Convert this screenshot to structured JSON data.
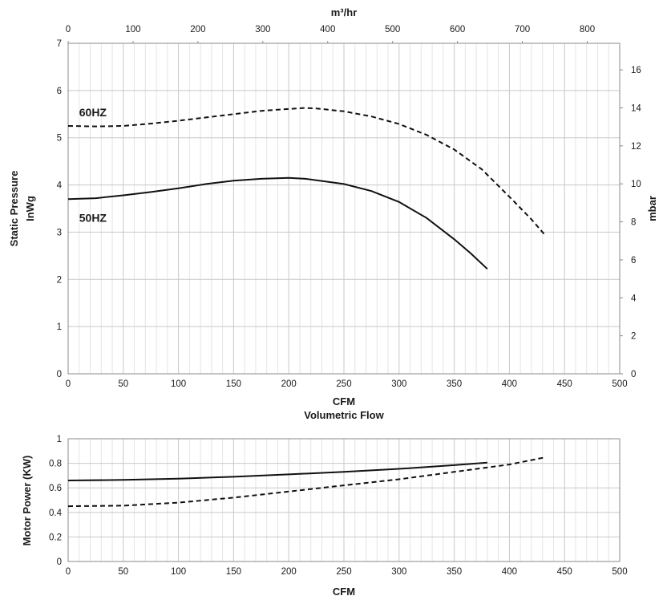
{
  "chart_data": [
    {
      "type": "line",
      "title": "",
      "top_axis": {
        "label": "m³/hr",
        "range": [
          0,
          850
        ],
        "ticks": [
          0,
          100,
          200,
          300,
          400,
          500,
          600,
          700,
          800
        ]
      },
      "x_axis": {
        "label": "CFM",
        "range": [
          0,
          500
        ],
        "ticks": [
          0,
          50,
          100,
          150,
          200,
          250,
          300,
          350,
          400,
          450,
          500
        ]
      },
      "xlabel_secondary": "Volumetric Flow",
      "y_axis": {
        "label": "Static Pressure",
        "unit": "InWg",
        "range": [
          0,
          7
        ],
        "ticks": [
          0,
          1,
          2,
          3,
          4,
          5,
          6,
          7
        ]
      },
      "y2_axis": {
        "label": "mbar",
        "range": [
          0,
          17.4
        ],
        "ticks": [
          0,
          2,
          4,
          6,
          8,
          10,
          12,
          14,
          16
        ]
      },
      "grid": true,
      "series": [
        {
          "name": "60HZ",
          "style": "dashed",
          "x": [
            0,
            25,
            50,
            75,
            100,
            125,
            150,
            175,
            200,
            215,
            225,
            250,
            275,
            300,
            325,
            350,
            375,
            400,
            420,
            433
          ],
          "y": [
            5.25,
            5.24,
            5.25,
            5.3,
            5.36,
            5.43,
            5.5,
            5.57,
            5.61,
            5.63,
            5.62,
            5.56,
            5.45,
            5.29,
            5.06,
            4.75,
            4.33,
            3.75,
            3.27,
            2.92
          ]
        },
        {
          "name": "50HZ",
          "style": "solid",
          "x": [
            0,
            25,
            50,
            75,
            100,
            125,
            150,
            175,
            200,
            215,
            250,
            275,
            300,
            325,
            350,
            365,
            380
          ],
          "y": [
            3.7,
            3.72,
            3.78,
            3.85,
            3.93,
            4.02,
            4.09,
            4.13,
            4.15,
            4.13,
            4.02,
            3.87,
            3.64,
            3.3,
            2.85,
            2.55,
            2.22
          ]
        }
      ]
    },
    {
      "type": "line",
      "title": "",
      "x_axis": {
        "label": "CFM",
        "range": [
          0,
          500
        ],
        "ticks": [
          0,
          50,
          100,
          150,
          200,
          250,
          300,
          350,
          400,
          450,
          500
        ]
      },
      "y_axis": {
        "label": "Motor Power (KW)",
        "range": [
          0,
          1
        ],
        "ticks": [
          0,
          0.2,
          0.4,
          0.6,
          0.8,
          1
        ]
      },
      "grid": true,
      "series": [
        {
          "style": "solid",
          "x": [
            0,
            50,
            100,
            150,
            200,
            250,
            300,
            350,
            380
          ],
          "y": [
            0.66,
            0.665,
            0.675,
            0.69,
            0.71,
            0.73,
            0.755,
            0.785,
            0.805
          ]
        },
        {
          "style": "dashed",
          "x": [
            0,
            50,
            100,
            150,
            200,
            250,
            300,
            350,
            400,
            433
          ],
          "y": [
            0.45,
            0.455,
            0.48,
            0.52,
            0.57,
            0.62,
            0.67,
            0.73,
            0.79,
            0.85
          ]
        }
      ]
    }
  ]
}
